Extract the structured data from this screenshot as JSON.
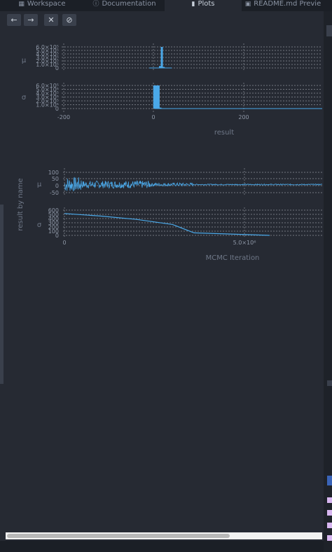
{
  "tabs": [
    {
      "label": "Workspace",
      "icon": "grid-icon"
    },
    {
      "label": "Documentation",
      "icon": "info-icon"
    },
    {
      "label": "Plots",
      "icon": "bar-chart-icon",
      "active": true
    },
    {
      "label": "README.md Previe",
      "icon": "preview-icon"
    }
  ],
  "toolbar": {
    "back_label": "←",
    "forward_label": "→",
    "close_label": "✕",
    "clear_label": "⊘"
  },
  "colors": {
    "series": "#4aa8e8",
    "grid": "#8a8f99",
    "background": "#262a33"
  },
  "chart_data": [
    {
      "type": "histogram",
      "ylabel": "μ",
      "yticks": [
        "6.0×10⁵",
        "5.0×10⁵",
        "4.0×10⁵",
        "3.0×10⁵",
        "2.0×10⁵",
        "1.0×10⁵",
        "0"
      ],
      "bins": [
        {
          "x": 10,
          "value": 0.04
        },
        {
          "x": 14,
          "value": 0.55
        },
        {
          "x": 18,
          "value": 6.0
        },
        {
          "x": 22,
          "value": 0.3
        },
        {
          "x": 26,
          "value": 0.02
        }
      ]
    },
    {
      "type": "histogram",
      "ylabel": "σ",
      "yticks": [
        "6.0×10⁵",
        "5.0×10⁵",
        "4.0×10⁵",
        "3.0×10⁵",
        "2.0×10⁵",
        "1.0×10⁵",
        "0"
      ],
      "bins": [
        {
          "x": 2,
          "value": 6.0
        },
        {
          "x": 6,
          "value": 6.0
        },
        {
          "x": 10,
          "value": 6.0
        },
        {
          "x": 14,
          "value": 0.25
        },
        {
          "x": 60,
          "value": 0.1
        },
        {
          "x": 150,
          "value": 0.05
        },
        {
          "x": 300,
          "value": 0.05
        }
      ],
      "xticks": [
        "-200",
        "0",
        "200"
      ],
      "xlabel": "result"
    },
    {
      "type": "line",
      "ylabel": "μ",
      "yticks": [
        "100",
        "50",
        "0",
        "-50"
      ],
      "group_label": "result by name"
    },
    {
      "type": "line",
      "ylabel": "σ",
      "yticks": [
        "600",
        "500",
        "400",
        "300",
        "200",
        "100",
        "0"
      ],
      "points": [
        [
          0,
          520
        ],
        [
          1000000,
          460
        ],
        [
          2000000,
          380
        ],
        [
          3000000,
          260
        ],
        [
          3600000,
          60
        ],
        [
          5700000,
          0
        ]
      ],
      "xticks": [
        "0",
        "5.0×10⁶"
      ],
      "xlabel": "MCMC Iteration"
    }
  ]
}
